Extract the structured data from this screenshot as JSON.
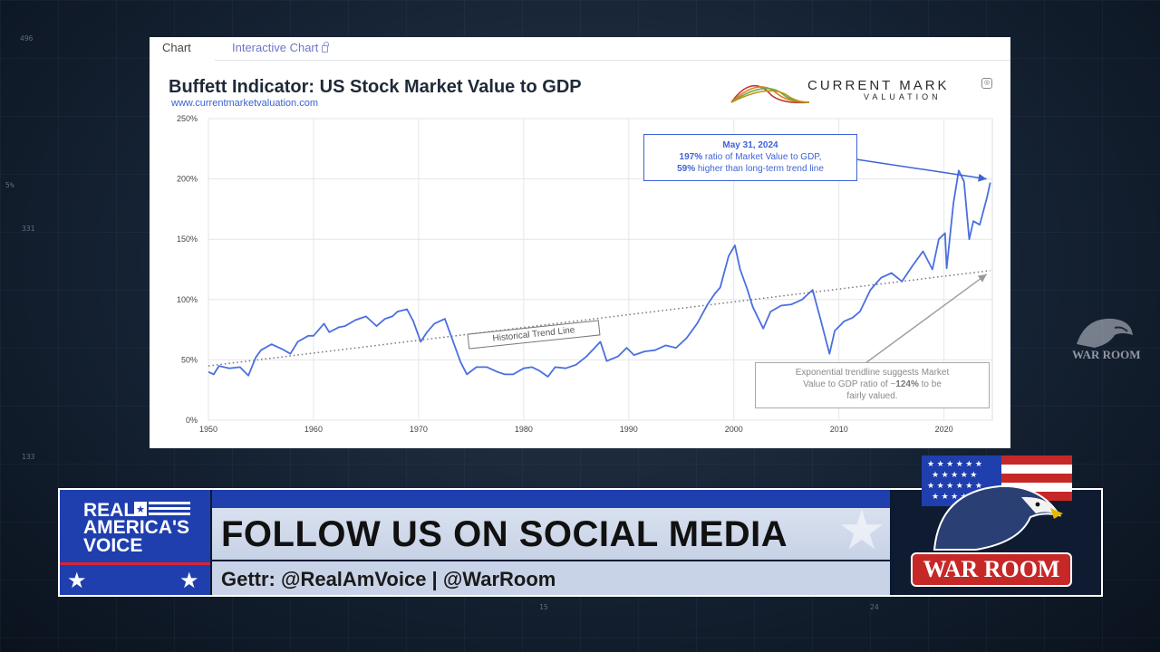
{
  "tabs": {
    "chart": "Chart",
    "interactive": "Interactive Chart"
  },
  "chart_header": {
    "title": "Buffett Indicator: US Stock Market Value to GDP",
    "subtitle": "www.currentmarketvaluation.com",
    "logo_line1": "CURRENT MARK",
    "logo_line2": "VALUATION"
  },
  "annotations": {
    "callout_date": "May 31, 2024",
    "callout_line1_bold": "197%",
    "callout_line1": "ratio of Market Value to GDP,",
    "callout_line2_bold": "59%",
    "callout_line2": "higher than long-term trend line",
    "trend_label": "Historical Trend Line",
    "trendline_line1": "Exponential trendline suggests Market",
    "trendline_line2a": "Value to GDP ratio of ~",
    "trendline_line2_bold": "124%",
    "trendline_line2b": "to be",
    "trendline_line3": "fairly valued."
  },
  "chart_data": {
    "type": "line",
    "title": "Buffett Indicator: US Stock Market Value to GDP",
    "xlabel": "",
    "ylabel": "",
    "xlim": [
      1950,
      2024.6
    ],
    "ylim": [
      0,
      250
    ],
    "x_ticks": [
      "1950",
      "1960",
      "1970",
      "1980",
      "1990",
      "2000",
      "2010",
      "2020"
    ],
    "y_ticks": [
      "0%",
      "50%",
      "100%",
      "150%",
      "200%",
      "250%"
    ],
    "grid": true,
    "series": [
      {
        "name": "",
        "color": "#4a6fe0",
        "x": [
          1950,
          1950.5,
          1951,
          1952,
          1953,
          1953.8,
          1954.5,
          1955,
          1956,
          1957,
          1957.8,
          1958.5,
          1959.5,
          1960,
          1961,
          1961.5,
          1962.4,
          1963,
          1964,
          1965,
          1966,
          1966.8,
          1967.5,
          1968,
          1968.9,
          1969.5,
          1970.2,
          1970.8,
          1971.5,
          1972.5,
          1973,
          1974,
          1974.6,
          1975.5,
          1976.5,
          1977.5,
          1978.2,
          1979,
          1980,
          1980.8,
          1981.5,
          1982.3,
          1983,
          1984,
          1985,
          1986,
          1987.3,
          1987.9,
          1989,
          1989.8,
          1990.5,
          1991.5,
          1992.5,
          1993.5,
          1994.5,
          1995.5,
          1996.5,
          1997.5,
          1998.2,
          1998.7,
          1999.5,
          2000.1,
          2000.6,
          2001.3,
          2001.8,
          2002.8,
          2003.5,
          2004.5,
          2005.5,
          2006.5,
          2007.5,
          2008.3,
          2009.1,
          2009.6,
          2010.5,
          2011.3,
          2012,
          2013,
          2014,
          2015,
          2016,
          2017,
          2018,
          2018.9,
          2019.5,
          2020.1,
          2020.25,
          2020.9,
          2021.4,
          2021.9,
          2022.4,
          2022.8,
          2023.4,
          2024.1,
          2024.4
        ],
        "y": [
          40,
          38,
          45,
          43,
          44,
          37,
          52,
          58,
          63,
          59,
          55,
          65,
          70,
          70,
          80,
          73,
          77,
          78,
          83,
          86,
          78,
          84,
          86,
          90,
          92,
          82,
          65,
          73,
          80,
          84,
          72,
          48,
          38,
          44,
          44,
          40,
          38,
          38,
          43,
          44,
          41,
          36,
          44,
          43,
          46,
          53,
          65,
          49,
          53,
          60,
          54,
          57,
          58,
          62,
          60,
          68,
          80,
          96,
          105,
          110,
          136,
          145,
          125,
          108,
          94,
          76,
          90,
          95,
          96,
          100,
          108,
          82,
          55,
          74,
          82,
          85,
          90,
          108,
          118,
          122,
          115,
          128,
          140,
          125,
          150,
          155,
          126,
          180,
          207,
          198,
          150,
          165,
          162,
          185,
          197
        ]
      }
    ],
    "trendline": {
      "name": "Historical Trend Line",
      "x": [
        1950,
        2024.4
      ],
      "y": [
        45,
        124
      ],
      "style": "dotted"
    },
    "highlight": {
      "x": 2024.4,
      "y": 197,
      "label": "197%"
    }
  },
  "lower_third": {
    "network_line1": "REAL",
    "network_line2": "AMERICA'S",
    "network_line3": "VOICE",
    "headline": "FOLLOW US ON SOCIAL MEDIA",
    "subline": "Gettr: @RealAmVoice | @WarRoom",
    "show_logo": "WAR ROOM"
  },
  "side_logo": "WAR ROOM",
  "bg_numbers": [
    "496",
    "5%",
    "331",
    "133",
    "15",
    "24"
  ]
}
